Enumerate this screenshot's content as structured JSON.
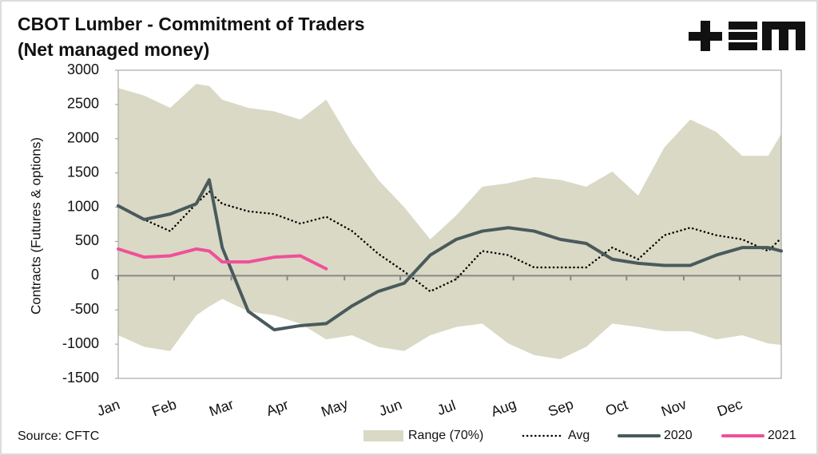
{
  "chart_data": {
    "type": "line",
    "title": "CBOT Lumber - Commitment of Traders",
    "subtitle": "(Net managed money)",
    "y_label": "Contracts (Futures & options)",
    "source": "Source: CFTC",
    "x": [
      0,
      2,
      4,
      6,
      7,
      8,
      10,
      12,
      14,
      16,
      18,
      20,
      22,
      24,
      26,
      28,
      30,
      32,
      34,
      36,
      38,
      40,
      42,
      44,
      46,
      48,
      50,
      51
    ],
    "xlim": [
      0,
      51
    ],
    "xticks": [
      {
        "value": 0,
        "label": "Jan"
      },
      {
        "value": 4.3,
        "label": "Feb"
      },
      {
        "value": 8.7,
        "label": "Mar"
      },
      {
        "value": 13,
        "label": "Apr"
      },
      {
        "value": 17.4,
        "label": "May"
      },
      {
        "value": 21.7,
        "label": "Jun"
      },
      {
        "value": 26,
        "label": "Jul"
      },
      {
        "value": 30.4,
        "label": "Aug"
      },
      {
        "value": 34.8,
        "label": "Sep"
      },
      {
        "value": 39.1,
        "label": "Oct"
      },
      {
        "value": 43.5,
        "label": "Nov"
      },
      {
        "value": 47.8,
        "label": "Dec"
      }
    ],
    "ylim": [
      -1500,
      3000
    ],
    "yticks": [
      -1500,
      -1000,
      -500,
      0,
      500,
      1000,
      1500,
      2000,
      2500,
      3000
    ],
    "series": [
      {
        "name": "Range (70%)",
        "kind": "band",
        "color": "#d9d9c5",
        "upper": [
          2740,
          2630,
          2450,
          2800,
          2770,
          2570,
          2450,
          2400,
          2280,
          2570,
          1930,
          1400,
          1000,
          530,
          880,
          1300,
          1350,
          1440,
          1400,
          1300,
          1520,
          1170,
          1870,
          2280,
          2100,
          1750,
          1750,
          2070
        ],
        "lower": [
          -870,
          -1040,
          -1100,
          -580,
          -450,
          -340,
          -520,
          -580,
          -700,
          -930,
          -870,
          -1040,
          -1100,
          -870,
          -750,
          -700,
          -990,
          -1160,
          -1220,
          -1040,
          -700,
          -750,
          -810,
          -810,
          -930,
          -870,
          -990,
          -1010
        ]
      },
      {
        "name": "Avg",
        "kind": "dotted",
        "color": "#000000",
        "values": [
          1020,
          820,
          650,
          1050,
          1230,
          1050,
          940,
          900,
          760,
          860,
          650,
          320,
          60,
          -230,
          -50,
          360,
          300,
          120,
          120,
          120,
          410,
          240,
          590,
          700,
          590,
          530,
          360,
          550
        ]
      },
      {
        "name": "2020",
        "kind": "solid",
        "color": "#4a5a5c",
        "values": [
          1020,
          820,
          900,
          1050,
          1400,
          410,
          -520,
          -790,
          -730,
          -700,
          -440,
          -230,
          -110,
          300,
          530,
          650,
          700,
          650,
          530,
          470,
          240,
          180,
          150,
          150,
          300,
          410,
          410,
          360
        ]
      },
      {
        "name": "2021",
        "kind": "solid",
        "color": "#f0509a",
        "values": [
          390,
          270,
          290,
          390,
          360,
          200,
          200,
          270,
          290,
          100,
          null,
          null,
          null,
          null,
          null,
          null,
          null,
          null,
          null,
          null,
          null,
          null,
          null,
          null,
          null,
          null,
          null,
          null
        ]
      }
    ]
  }
}
